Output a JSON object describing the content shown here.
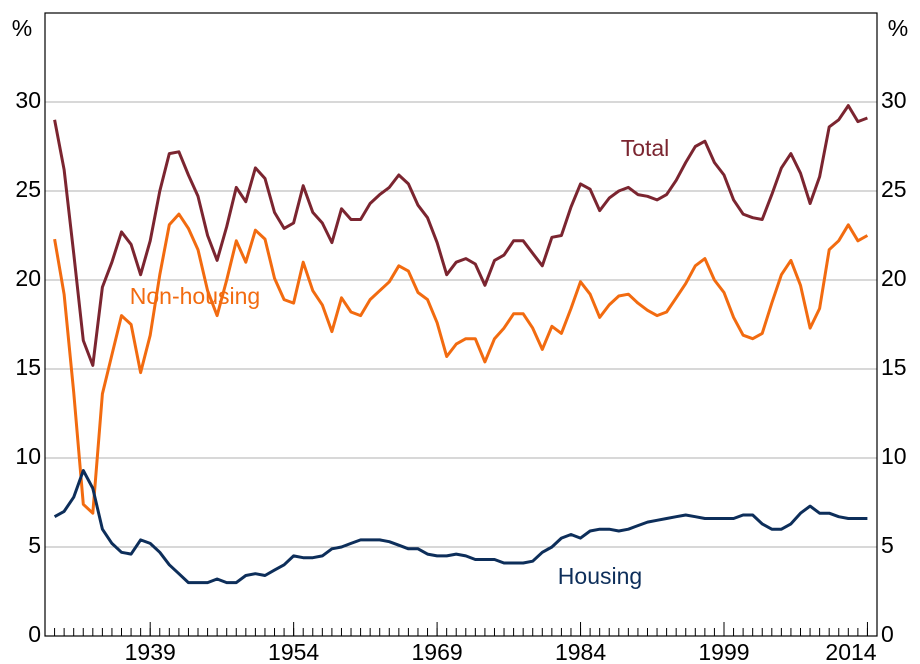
{
  "chart_data": {
    "type": "line",
    "y_unit": "%",
    "x": [
      1929,
      1930,
      1931,
      1932,
      1933,
      1934,
      1935,
      1936,
      1937,
      1938,
      1939,
      1940,
      1941,
      1942,
      1943,
      1944,
      1945,
      1946,
      1947,
      1948,
      1949,
      1950,
      1951,
      1952,
      1953,
      1954,
      1955,
      1956,
      1957,
      1958,
      1959,
      1960,
      1961,
      1962,
      1963,
      1964,
      1965,
      1966,
      1967,
      1968,
      1969,
      1970,
      1971,
      1972,
      1973,
      1974,
      1975,
      1976,
      1977,
      1978,
      1979,
      1980,
      1981,
      1982,
      1983,
      1984,
      1985,
      1986,
      1987,
      1988,
      1989,
      1990,
      1991,
      1992,
      1993,
      1994,
      1995,
      1996,
      1997,
      1998,
      1999,
      2000,
      2001,
      2002,
      2003,
      2004,
      2005,
      2006,
      2007,
      2008,
      2009,
      2010,
      2011,
      2012,
      2013,
      2014
    ],
    "series": [
      {
        "name": "Total",
        "color": "#7b2530",
        "values": [
          29.0,
          26.2,
          21.5,
          16.6,
          15.2,
          19.6,
          21.0,
          22.7,
          22.0,
          20.3,
          22.2,
          25.0,
          27.1,
          27.2,
          25.9,
          24.7,
          22.5,
          21.1,
          23.0,
          25.2,
          24.4,
          26.3,
          25.7,
          23.8,
          22.9,
          23.2,
          25.3,
          23.8,
          23.2,
          22.1,
          24.0,
          23.4,
          23.4,
          24.3,
          24.8,
          25.2,
          25.9,
          25.4,
          24.2,
          23.5,
          22.1,
          20.3,
          21.0,
          21.2,
          20.9,
          19.7,
          21.1,
          21.4,
          22.2,
          22.2,
          21.5,
          20.8,
          22.4,
          22.5,
          24.1,
          25.4,
          25.1,
          23.9,
          24.6,
          25.0,
          25.2,
          24.8,
          24.7,
          24.5,
          24.8,
          25.6,
          26.6,
          27.5,
          27.8,
          26.6,
          25.9,
          24.5,
          23.7,
          23.5,
          23.4,
          24.8,
          26.3,
          27.1,
          26.0,
          24.3,
          25.8,
          28.6,
          29.0,
          29.8,
          28.9,
          29.1
        ]
      },
      {
        "name": "Non-housing",
        "color": "#f26b10",
        "values": [
          22.3,
          19.2,
          13.7,
          7.4,
          6.9,
          13.6,
          15.8,
          18.0,
          17.5,
          14.8,
          16.9,
          20.3,
          23.1,
          23.7,
          22.9,
          21.7,
          19.4,
          18.0,
          20.0,
          22.2,
          21.0,
          22.8,
          22.3,
          20.1,
          18.9,
          18.7,
          21.0,
          19.4,
          18.6,
          17.1,
          19.0,
          18.2,
          18.0,
          18.9,
          19.4,
          19.9,
          20.8,
          20.5,
          19.3,
          18.9,
          17.6,
          15.7,
          16.4,
          16.7,
          16.7,
          15.4,
          16.7,
          17.3,
          18.1,
          18.1,
          17.3,
          16.1,
          17.4,
          17.0,
          18.4,
          19.9,
          19.2,
          17.9,
          18.6,
          19.1,
          19.2,
          18.7,
          18.3,
          18.0,
          18.2,
          19.0,
          19.8,
          20.8,
          21.2,
          20.0,
          19.3,
          17.9,
          16.9,
          16.7,
          17.0,
          18.7,
          20.3,
          21.1,
          19.7,
          17.3,
          18.4,
          21.7,
          22.2,
          23.1,
          22.2,
          22.5
        ]
      },
      {
        "name": "Housing",
        "color": "#0d2e5a",
        "values": [
          6.7,
          7.0,
          7.8,
          9.3,
          8.3,
          6.0,
          5.2,
          4.7,
          4.6,
          5.4,
          5.2,
          4.7,
          4.0,
          3.5,
          3.0,
          3.0,
          3.0,
          3.2,
          3.0,
          3.0,
          3.4,
          3.5,
          3.4,
          3.7,
          4.0,
          4.5,
          4.4,
          4.4,
          4.5,
          4.9,
          5.0,
          5.2,
          5.4,
          5.4,
          5.4,
          5.3,
          5.1,
          4.9,
          4.9,
          4.6,
          4.5,
          4.5,
          4.6,
          4.5,
          4.3,
          4.3,
          4.3,
          4.1,
          4.1,
          4.1,
          4.2,
          4.7,
          5.0,
          5.5,
          5.7,
          5.5,
          5.9,
          6.0,
          6.0,
          5.9,
          6.0,
          6.2,
          6.4,
          6.5,
          6.6,
          6.7,
          6.8,
          6.7,
          6.6,
          6.6,
          6.6,
          6.6,
          6.8,
          6.8,
          6.3,
          6.0,
          6.0,
          6.3,
          6.9,
          7.3,
          6.9,
          6.9,
          6.7,
          6.6,
          6.6,
          6.6
        ]
      }
    ],
    "xlim": [
      1928,
      2015
    ],
    "xticks": [
      1939,
      1954,
      1969,
      1984,
      1999,
      2014
    ],
    "ylim": [
      0,
      35
    ],
    "yticks": [
      0,
      5,
      10,
      15,
      20,
      25,
      30
    ],
    "grid": true
  }
}
